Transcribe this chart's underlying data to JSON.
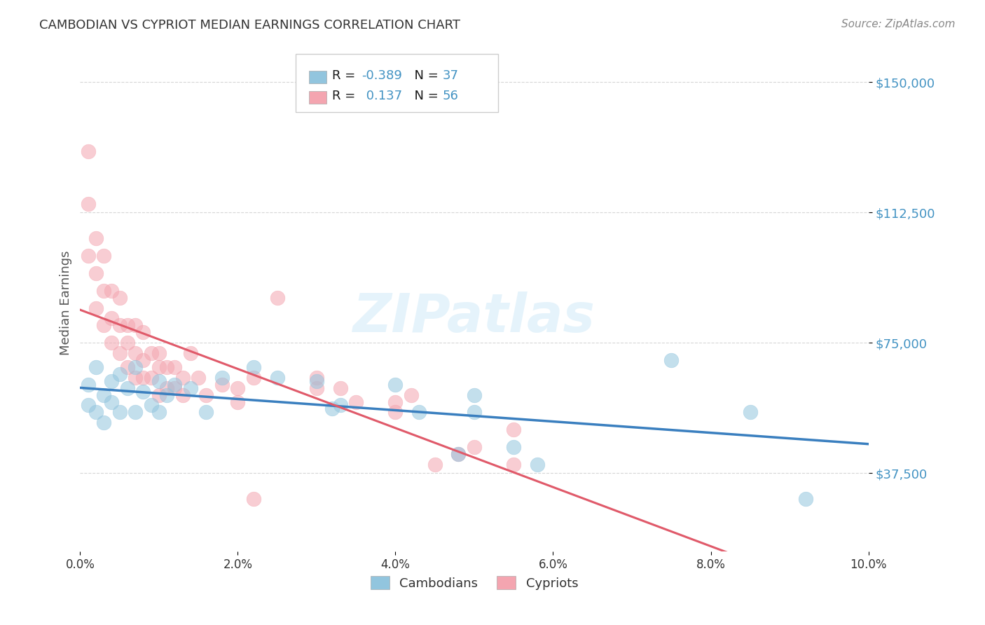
{
  "title": "CAMBODIAN VS CYPRIOT MEDIAN EARNINGS CORRELATION CHART",
  "source": "Source: ZipAtlas.com",
  "ylabel": "Median Earnings",
  "y_ticks": [
    37500,
    75000,
    112500,
    150000
  ],
  "y_tick_labels": [
    "$37,500",
    "$75,000",
    "$112,500",
    "$150,000"
  ],
  "xlim": [
    0.0,
    0.1
  ],
  "ylim": [
    15000,
    158000
  ],
  "cambodian_R": "-0.389",
  "cambodian_N": "37",
  "cypriot_R": "0.137",
  "cypriot_N": "56",
  "cambodian_color": "#92c5de",
  "cypriot_color": "#f4a5b0",
  "cambodian_line_color": "#3a7fbf",
  "cypriot_line_color": "#e05a6a",
  "cypriot_dash_color": "#f0a0aa",
  "watermark": "ZIPatlas",
  "background_color": "#ffffff",
  "grid_color": "#bbbbbb",
  "title_color": "#333333",
  "axis_label_color": "#4393c3",
  "legend_text_color": "#1a1a1a",
  "source_color": "#888888",
  "cambodians_x": [
    0.001,
    0.001,
    0.002,
    0.002,
    0.003,
    0.003,
    0.004,
    0.004,
    0.005,
    0.005,
    0.006,
    0.007,
    0.007,
    0.008,
    0.009,
    0.01,
    0.01,
    0.011,
    0.012,
    0.014,
    0.016,
    0.018,
    0.022,
    0.025,
    0.03,
    0.032,
    0.033,
    0.04,
    0.043,
    0.048,
    0.05,
    0.055,
    0.058,
    0.075,
    0.085,
    0.092,
    0.05
  ],
  "cambodians_y": [
    63000,
    57000,
    68000,
    55000,
    60000,
    52000,
    64000,
    58000,
    66000,
    55000,
    62000,
    68000,
    55000,
    61000,
    57000,
    64000,
    55000,
    60000,
    63000,
    62000,
    55000,
    65000,
    68000,
    65000,
    64000,
    56000,
    57000,
    63000,
    55000,
    43000,
    55000,
    45000,
    40000,
    70000,
    55000,
    30000,
    60000
  ],
  "cypriots_x": [
    0.001,
    0.001,
    0.001,
    0.002,
    0.002,
    0.002,
    0.003,
    0.003,
    0.003,
    0.004,
    0.004,
    0.004,
    0.005,
    0.005,
    0.005,
    0.006,
    0.006,
    0.006,
    0.007,
    0.007,
    0.007,
    0.008,
    0.008,
    0.008,
    0.009,
    0.009,
    0.01,
    0.01,
    0.01,
    0.011,
    0.011,
    0.012,
    0.012,
    0.013,
    0.013,
    0.014,
    0.015,
    0.016,
    0.018,
    0.02,
    0.02,
    0.022,
    0.025,
    0.03,
    0.033,
    0.035,
    0.04,
    0.04,
    0.042,
    0.045,
    0.05,
    0.055,
    0.055,
    0.03,
    0.048,
    0.022
  ],
  "cypriots_y": [
    130000,
    115000,
    100000,
    105000,
    95000,
    85000,
    100000,
    90000,
    80000,
    90000,
    82000,
    75000,
    88000,
    80000,
    72000,
    80000,
    75000,
    68000,
    80000,
    72000,
    65000,
    78000,
    70000,
    65000,
    72000,
    65000,
    68000,
    72000,
    60000,
    68000,
    62000,
    68000,
    62000,
    65000,
    60000,
    72000,
    65000,
    60000,
    63000,
    62000,
    58000,
    65000,
    88000,
    65000,
    62000,
    58000,
    58000,
    55000,
    60000,
    40000,
    45000,
    50000,
    40000,
    62000,
    43000,
    30000
  ]
}
